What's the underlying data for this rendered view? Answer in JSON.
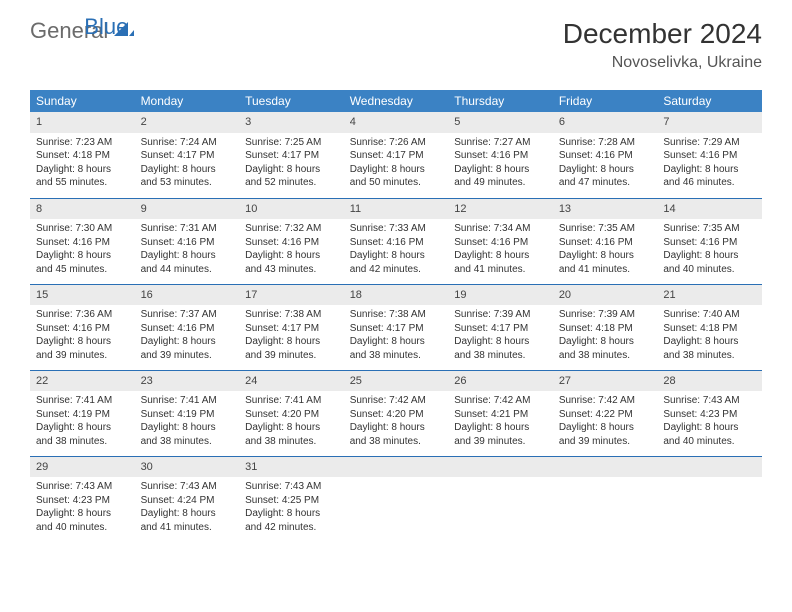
{
  "logo": {
    "text1": "General",
    "text2": "Blue"
  },
  "title": "December 2024",
  "location": "Novoselivka, Ukraine",
  "colors": {
    "header_bg": "#3b82c4",
    "header_text": "#ffffff",
    "daynum_bg": "#ebebeb",
    "row_border": "#2a6fb5",
    "body_text": "#333333",
    "logo_gray": "#6b6b6b",
    "logo_blue": "#2a6fb5"
  },
  "weekdays": [
    "Sunday",
    "Monday",
    "Tuesday",
    "Wednesday",
    "Thursday",
    "Friday",
    "Saturday"
  ],
  "weeks": [
    [
      {
        "day": "1",
        "sunrise": "Sunrise: 7:23 AM",
        "sunset": "Sunset: 4:18 PM",
        "day1": "Daylight: 8 hours",
        "day2": "and 55 minutes."
      },
      {
        "day": "2",
        "sunrise": "Sunrise: 7:24 AM",
        "sunset": "Sunset: 4:17 PM",
        "day1": "Daylight: 8 hours",
        "day2": "and 53 minutes."
      },
      {
        "day": "3",
        "sunrise": "Sunrise: 7:25 AM",
        "sunset": "Sunset: 4:17 PM",
        "day1": "Daylight: 8 hours",
        "day2": "and 52 minutes."
      },
      {
        "day": "4",
        "sunrise": "Sunrise: 7:26 AM",
        "sunset": "Sunset: 4:17 PM",
        "day1": "Daylight: 8 hours",
        "day2": "and 50 minutes."
      },
      {
        "day": "5",
        "sunrise": "Sunrise: 7:27 AM",
        "sunset": "Sunset: 4:16 PM",
        "day1": "Daylight: 8 hours",
        "day2": "and 49 minutes."
      },
      {
        "day": "6",
        "sunrise": "Sunrise: 7:28 AM",
        "sunset": "Sunset: 4:16 PM",
        "day1": "Daylight: 8 hours",
        "day2": "and 47 minutes."
      },
      {
        "day": "7",
        "sunrise": "Sunrise: 7:29 AM",
        "sunset": "Sunset: 4:16 PM",
        "day1": "Daylight: 8 hours",
        "day2": "and 46 minutes."
      }
    ],
    [
      {
        "day": "8",
        "sunrise": "Sunrise: 7:30 AM",
        "sunset": "Sunset: 4:16 PM",
        "day1": "Daylight: 8 hours",
        "day2": "and 45 minutes."
      },
      {
        "day": "9",
        "sunrise": "Sunrise: 7:31 AM",
        "sunset": "Sunset: 4:16 PM",
        "day1": "Daylight: 8 hours",
        "day2": "and 44 minutes."
      },
      {
        "day": "10",
        "sunrise": "Sunrise: 7:32 AM",
        "sunset": "Sunset: 4:16 PM",
        "day1": "Daylight: 8 hours",
        "day2": "and 43 minutes."
      },
      {
        "day": "11",
        "sunrise": "Sunrise: 7:33 AM",
        "sunset": "Sunset: 4:16 PM",
        "day1": "Daylight: 8 hours",
        "day2": "and 42 minutes."
      },
      {
        "day": "12",
        "sunrise": "Sunrise: 7:34 AM",
        "sunset": "Sunset: 4:16 PM",
        "day1": "Daylight: 8 hours",
        "day2": "and 41 minutes."
      },
      {
        "day": "13",
        "sunrise": "Sunrise: 7:35 AM",
        "sunset": "Sunset: 4:16 PM",
        "day1": "Daylight: 8 hours",
        "day2": "and 41 minutes."
      },
      {
        "day": "14",
        "sunrise": "Sunrise: 7:35 AM",
        "sunset": "Sunset: 4:16 PM",
        "day1": "Daylight: 8 hours",
        "day2": "and 40 minutes."
      }
    ],
    [
      {
        "day": "15",
        "sunrise": "Sunrise: 7:36 AM",
        "sunset": "Sunset: 4:16 PM",
        "day1": "Daylight: 8 hours",
        "day2": "and 39 minutes."
      },
      {
        "day": "16",
        "sunrise": "Sunrise: 7:37 AM",
        "sunset": "Sunset: 4:16 PM",
        "day1": "Daylight: 8 hours",
        "day2": "and 39 minutes."
      },
      {
        "day": "17",
        "sunrise": "Sunrise: 7:38 AM",
        "sunset": "Sunset: 4:17 PM",
        "day1": "Daylight: 8 hours",
        "day2": "and 39 minutes."
      },
      {
        "day": "18",
        "sunrise": "Sunrise: 7:38 AM",
        "sunset": "Sunset: 4:17 PM",
        "day1": "Daylight: 8 hours",
        "day2": "and 38 minutes."
      },
      {
        "day": "19",
        "sunrise": "Sunrise: 7:39 AM",
        "sunset": "Sunset: 4:17 PM",
        "day1": "Daylight: 8 hours",
        "day2": "and 38 minutes."
      },
      {
        "day": "20",
        "sunrise": "Sunrise: 7:39 AM",
        "sunset": "Sunset: 4:18 PM",
        "day1": "Daylight: 8 hours",
        "day2": "and 38 minutes."
      },
      {
        "day": "21",
        "sunrise": "Sunrise: 7:40 AM",
        "sunset": "Sunset: 4:18 PM",
        "day1": "Daylight: 8 hours",
        "day2": "and 38 minutes."
      }
    ],
    [
      {
        "day": "22",
        "sunrise": "Sunrise: 7:41 AM",
        "sunset": "Sunset: 4:19 PM",
        "day1": "Daylight: 8 hours",
        "day2": "and 38 minutes."
      },
      {
        "day": "23",
        "sunrise": "Sunrise: 7:41 AM",
        "sunset": "Sunset: 4:19 PM",
        "day1": "Daylight: 8 hours",
        "day2": "and 38 minutes."
      },
      {
        "day": "24",
        "sunrise": "Sunrise: 7:41 AM",
        "sunset": "Sunset: 4:20 PM",
        "day1": "Daylight: 8 hours",
        "day2": "and 38 minutes."
      },
      {
        "day": "25",
        "sunrise": "Sunrise: 7:42 AM",
        "sunset": "Sunset: 4:20 PM",
        "day1": "Daylight: 8 hours",
        "day2": "and 38 minutes."
      },
      {
        "day": "26",
        "sunrise": "Sunrise: 7:42 AM",
        "sunset": "Sunset: 4:21 PM",
        "day1": "Daylight: 8 hours",
        "day2": "and 39 minutes."
      },
      {
        "day": "27",
        "sunrise": "Sunrise: 7:42 AM",
        "sunset": "Sunset: 4:22 PM",
        "day1": "Daylight: 8 hours",
        "day2": "and 39 minutes."
      },
      {
        "day": "28",
        "sunrise": "Sunrise: 7:43 AM",
        "sunset": "Sunset: 4:23 PM",
        "day1": "Daylight: 8 hours",
        "day2": "and 40 minutes."
      }
    ],
    [
      {
        "day": "29",
        "sunrise": "Sunrise: 7:43 AM",
        "sunset": "Sunset: 4:23 PM",
        "day1": "Daylight: 8 hours",
        "day2": "and 40 minutes."
      },
      {
        "day": "30",
        "sunrise": "Sunrise: 7:43 AM",
        "sunset": "Sunset: 4:24 PM",
        "day1": "Daylight: 8 hours",
        "day2": "and 41 minutes."
      },
      {
        "day": "31",
        "sunrise": "Sunrise: 7:43 AM",
        "sunset": "Sunset: 4:25 PM",
        "day1": "Daylight: 8 hours",
        "day2": "and 42 minutes."
      },
      null,
      null,
      null,
      null
    ]
  ]
}
